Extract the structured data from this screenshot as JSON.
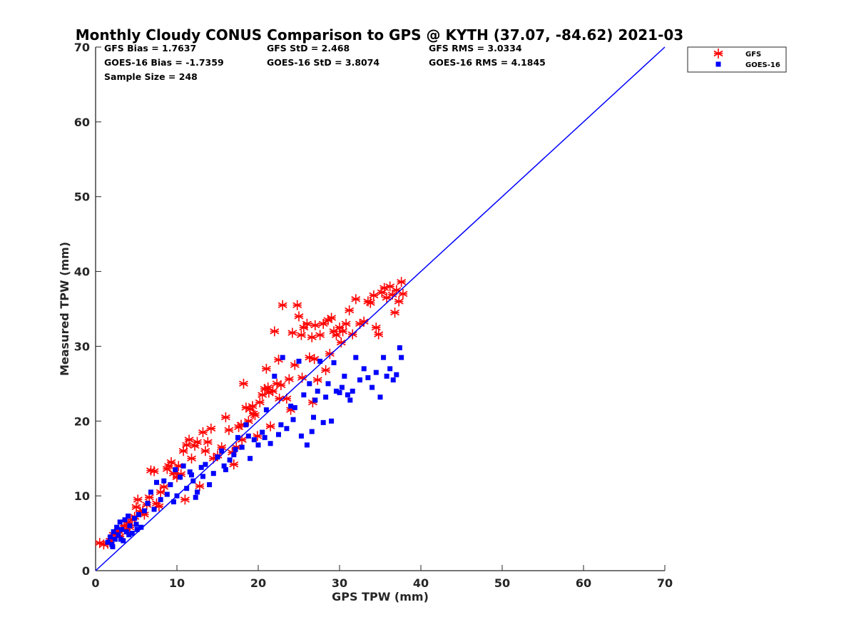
{
  "chart_data": {
    "type": "scatter",
    "title": "Monthly Cloudy CONUS Comparison to GPS @ KYTH (37.07, -84.62) 2021-03",
    "xlabel": "GPS TPW (mm)",
    "ylabel": "Measured TPW (mm)",
    "xlim": [
      0,
      70
    ],
    "ylim": [
      0,
      70
    ],
    "xticks": [
      "0",
      "10",
      "20",
      "30",
      "40",
      "50",
      "60",
      "70"
    ],
    "yticks": [
      "0",
      "10",
      "20",
      "30",
      "40",
      "50",
      "60",
      "70"
    ],
    "grid": false,
    "legend_position": "outside-top-right",
    "stats": [
      [
        "GFS Bias = 1.7637",
        "GFS StD = 2.468",
        "GFS RMS = 3.0334"
      ],
      [
        "GOES-16 Bias = -1.7359",
        "GOES-16 StD = 3.8074",
        "GOES-16 RMS = 4.1845"
      ],
      [
        "Sample Size = 248",
        "",
        ""
      ]
    ],
    "reference_line": {
      "x": [
        0,
        70
      ],
      "y": [
        0,
        70
      ],
      "color": "#0000ff"
    },
    "series": [
      {
        "name": "GFS",
        "marker": "asterisk",
        "color": "#ff0000",
        "points": [
          [
            0.5,
            3.7
          ],
          [
            1.0,
            3.5
          ],
          [
            1.5,
            3.6
          ],
          [
            1.8,
            4.0
          ],
          [
            2.0,
            4.3
          ],
          [
            2.2,
            4.8
          ],
          [
            2.5,
            5.0
          ],
          [
            2.8,
            5.3
          ],
          [
            3.0,
            4.6
          ],
          [
            3.2,
            5.6
          ],
          [
            3.5,
            6.0
          ],
          [
            3.8,
            5.5
          ],
          [
            4.0,
            6.4
          ],
          [
            4.2,
            5.8
          ],
          [
            4.5,
            6.8
          ],
          [
            4.8,
            7.2
          ],
          [
            5.0,
            8.5
          ],
          [
            5.2,
            9.5
          ],
          [
            5.5,
            7.8
          ],
          [
            5.8,
            8.0
          ],
          [
            6.0,
            7.5
          ],
          [
            6.3,
            8.8
          ],
          [
            6.6,
            9.8
          ],
          [
            6.8,
            13.4
          ],
          [
            7.2,
            13.3
          ],
          [
            7.5,
            9.0
          ],
          [
            7.8,
            8.6
          ],
          [
            8.0,
            10.5
          ],
          [
            8.4,
            11.2
          ],
          [
            8.8,
            13.6
          ],
          [
            9.0,
            14.0
          ],
          [
            9.3,
            14.5
          ],
          [
            9.6,
            13.0
          ],
          [
            10.0,
            12.5
          ],
          [
            10.2,
            14.0
          ],
          [
            10.5,
            12.9
          ],
          [
            10.8,
            16.0
          ],
          [
            11.0,
            9.5
          ],
          [
            11.2,
            16.8
          ],
          [
            11.5,
            17.5
          ],
          [
            11.8,
            15.0
          ],
          [
            12.2,
            16.7
          ],
          [
            12.5,
            17.2
          ],
          [
            12.8,
            11.3
          ],
          [
            13.2,
            18.5
          ],
          [
            13.5,
            16.0
          ],
          [
            13.8,
            17.2
          ],
          [
            14.2,
            19.0
          ],
          [
            14.5,
            15.0
          ],
          [
            15.0,
            15.4
          ],
          [
            15.5,
            16.5
          ],
          [
            16.0,
            20.5
          ],
          [
            16.4,
            18.8
          ],
          [
            16.8,
            15.8
          ],
          [
            17.0,
            14.2
          ],
          [
            17.3,
            16.5
          ],
          [
            17.6,
            19.2
          ],
          [
            18.0,
            17.5
          ],
          [
            18.2,
            25.0
          ],
          [
            18.5,
            21.8
          ],
          [
            18.8,
            20.0
          ],
          [
            19.0,
            21.6
          ],
          [
            19.3,
            22.0
          ],
          [
            19.6,
            20.8
          ],
          [
            19.9,
            18.0
          ],
          [
            20.2,
            22.5
          ],
          [
            20.5,
            23.5
          ],
          [
            20.8,
            24.3
          ],
          [
            21.0,
            27.0
          ],
          [
            21.2,
            24.5
          ],
          [
            21.5,
            19.3
          ],
          [
            21.8,
            24.0
          ],
          [
            22.0,
            32.0
          ],
          [
            22.3,
            25.0
          ],
          [
            22.5,
            28.2
          ],
          [
            22.8,
            24.8
          ],
          [
            23.0,
            35.5
          ],
          [
            23.5,
            23.0
          ],
          [
            24.0,
            21.5
          ],
          [
            24.5,
            27.5
          ],
          [
            24.8,
            35.5
          ],
          [
            25.0,
            34.0
          ],
          [
            25.3,
            31.5
          ],
          [
            25.6,
            32.5
          ],
          [
            26.0,
            33.0
          ],
          [
            26.3,
            28.5
          ],
          [
            26.6,
            31.2
          ],
          [
            27.0,
            32.8
          ],
          [
            27.3,
            25.5
          ],
          [
            27.6,
            31.5
          ],
          [
            28.0,
            33.0
          ],
          [
            28.3,
            26.8
          ],
          [
            28.6,
            33.5
          ],
          [
            29.0,
            33.8
          ],
          [
            29.3,
            32.0
          ],
          [
            29.6,
            31.5
          ],
          [
            30.0,
            32.5
          ],
          [
            30.4,
            32.0
          ],
          [
            30.8,
            33.0
          ],
          [
            31.2,
            34.8
          ],
          [
            31.6,
            31.6
          ],
          [
            32.0,
            36.3
          ],
          [
            32.5,
            33.0
          ],
          [
            33.0,
            33.3
          ],
          [
            33.5,
            36.0
          ],
          [
            33.8,
            35.8
          ],
          [
            34.2,
            36.8
          ],
          [
            34.5,
            32.5
          ],
          [
            34.8,
            31.6
          ],
          [
            35.2,
            37.2
          ],
          [
            35.5,
            37.8
          ],
          [
            35.8,
            36.5
          ],
          [
            36.2,
            38.0
          ],
          [
            36.5,
            36.9
          ],
          [
            36.8,
            34.5
          ],
          [
            37.0,
            37.5
          ],
          [
            37.3,
            36.0
          ],
          [
            37.6,
            38.6
          ],
          [
            37.8,
            37.0
          ],
          [
            24.2,
            31.8
          ],
          [
            21.3,
            23.8
          ],
          [
            22.6,
            23.0
          ],
          [
            19.4,
            21.0
          ],
          [
            17.9,
            19.5
          ],
          [
            26.7,
            22.5
          ],
          [
            28.8,
            29.0
          ],
          [
            30.2,
            30.5
          ],
          [
            23.8,
            25.6
          ],
          [
            26.9,
            28.3
          ],
          [
            25.4,
            25.8
          ]
        ]
      },
      {
        "name": "GOES-16",
        "marker": "square",
        "color": "#0000ff",
        "points": [
          [
            1.5,
            3.8
          ],
          [
            1.8,
            4.5
          ],
          [
            2.0,
            3.5
          ],
          [
            2.2,
            5.2
          ],
          [
            2.4,
            4.2
          ],
          [
            2.6,
            5.8
          ],
          [
            2.8,
            4.8
          ],
          [
            3.0,
            6.5
          ],
          [
            3.2,
            5.5
          ],
          [
            3.4,
            4.0
          ],
          [
            3.6,
            6.8
          ],
          [
            3.8,
            5.2
          ],
          [
            4.0,
            7.3
          ],
          [
            4.2,
            6.0
          ],
          [
            4.5,
            5.0
          ],
          [
            4.8,
            7.0
          ],
          [
            5.0,
            6.2
          ],
          [
            5.3,
            7.5
          ],
          [
            5.6,
            5.8
          ],
          [
            6.0,
            8.0
          ],
          [
            6.4,
            9.0
          ],
          [
            6.8,
            10.5
          ],
          [
            7.2,
            8.2
          ],
          [
            7.5,
            11.8
          ],
          [
            8.0,
            9.5
          ],
          [
            8.4,
            12.0
          ],
          [
            8.8,
            10.2
          ],
          [
            9.2,
            11.5
          ],
          [
            9.6,
            9.2
          ],
          [
            10.0,
            10.0
          ],
          [
            10.4,
            12.5
          ],
          [
            10.8,
            14.0
          ],
          [
            11.2,
            11.0
          ],
          [
            11.6,
            13.2
          ],
          [
            12.0,
            12.0
          ],
          [
            12.5,
            10.5
          ],
          [
            13.0,
            13.8
          ],
          [
            13.5,
            14.2
          ],
          [
            14.0,
            11.5
          ],
          [
            14.5,
            13.0
          ],
          [
            15.0,
            15.2
          ],
          [
            15.5,
            16.0
          ],
          [
            16.0,
            13.5
          ],
          [
            16.5,
            14.8
          ],
          [
            17.0,
            15.5
          ],
          [
            17.5,
            17.8
          ],
          [
            18.0,
            16.5
          ],
          [
            18.5,
            19.5
          ],
          [
            19.0,
            15.0
          ],
          [
            19.5,
            17.5
          ],
          [
            20.0,
            16.8
          ],
          [
            20.5,
            18.5
          ],
          [
            21.0,
            21.5
          ],
          [
            21.5,
            17.0
          ],
          [
            22.0,
            26.0
          ],
          [
            22.5,
            18.2
          ],
          [
            23.0,
            28.5
          ],
          [
            23.5,
            19.0
          ],
          [
            24.0,
            22.0
          ],
          [
            24.5,
            21.8
          ],
          [
            25.0,
            28.0
          ],
          [
            25.3,
            18.0
          ],
          [
            25.6,
            23.5
          ],
          [
            26.0,
            16.8
          ],
          [
            26.3,
            25.0
          ],
          [
            26.6,
            18.6
          ],
          [
            27.0,
            22.8
          ],
          [
            27.3,
            24.0
          ],
          [
            27.6,
            28.0
          ],
          [
            28.0,
            19.8
          ],
          [
            28.3,
            23.2
          ],
          [
            28.6,
            25.0
          ],
          [
            29.0,
            20.0
          ],
          [
            29.3,
            27.8
          ],
          [
            29.6,
            24.0
          ],
          [
            30.0,
            23.8
          ],
          [
            30.3,
            24.5
          ],
          [
            30.6,
            26.0
          ],
          [
            31.0,
            23.5
          ],
          [
            31.3,
            22.8
          ],
          [
            31.6,
            24.0
          ],
          [
            32.0,
            28.5
          ],
          [
            32.5,
            25.5
          ],
          [
            33.0,
            27.0
          ],
          [
            33.5,
            25.8
          ],
          [
            34.0,
            24.5
          ],
          [
            34.5,
            26.5
          ],
          [
            35.0,
            23.2
          ],
          [
            35.4,
            28.5
          ],
          [
            35.8,
            26.0
          ],
          [
            36.2,
            27.0
          ],
          [
            36.6,
            25.5
          ],
          [
            37.0,
            26.2
          ],
          [
            37.4,
            29.8
          ],
          [
            37.6,
            28.5
          ],
          [
            2.1,
            3.2
          ],
          [
            3.1,
            4.2
          ],
          [
            4.1,
            4.8
          ],
          [
            5.1,
            5.5
          ],
          [
            9.8,
            13.5
          ],
          [
            11.8,
            12.8
          ],
          [
            13.2,
            12.6
          ],
          [
            17.2,
            16.2
          ],
          [
            18.8,
            18.0
          ],
          [
            20.8,
            17.8
          ],
          [
            22.8,
            19.5
          ],
          [
            24.3,
            20.2
          ],
          [
            26.8,
            20.5
          ],
          [
            12.3,
            9.8
          ],
          [
            15.8,
            14.0
          ]
        ]
      }
    ]
  }
}
